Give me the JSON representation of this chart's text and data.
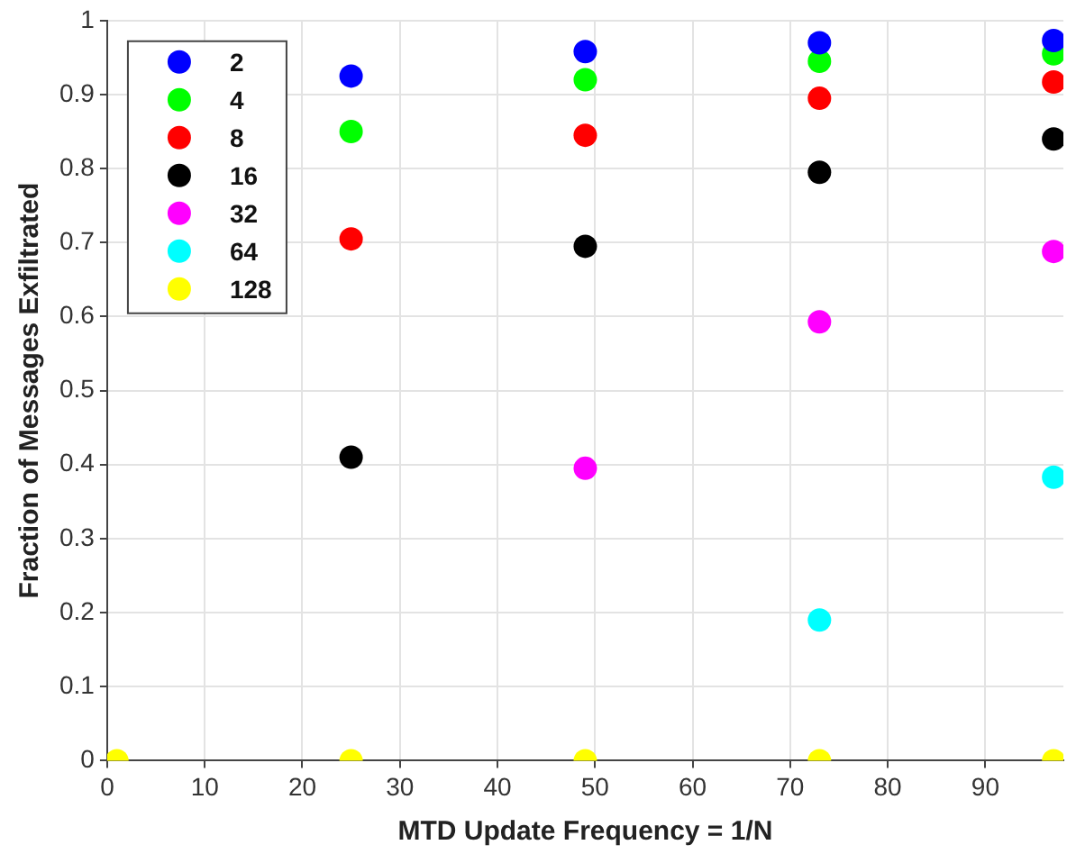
{
  "chart_data": {
    "type": "scatter",
    "xlabel": "MTD Update Frequency = 1/N",
    "ylabel": "Fraction of Messages Exfiltrated",
    "x": [
      1,
      25,
      49,
      73,
      97
    ],
    "series": [
      {
        "name": "2",
        "color": "#0000ff",
        "values": [
          null,
          0.925,
          0.958,
          0.97,
          0.973
        ]
      },
      {
        "name": "4",
        "color": "#00ff00",
        "values": [
          null,
          0.85,
          0.92,
          0.945,
          0.955
        ]
      },
      {
        "name": "8",
        "color": "#ff0000",
        "values": [
          null,
          0.705,
          0.845,
          0.895,
          0.917
        ]
      },
      {
        "name": "16",
        "color": "#000000",
        "values": [
          null,
          0.41,
          0.695,
          0.795,
          0.84
        ]
      },
      {
        "name": "32",
        "color": "#ff00ff",
        "values": [
          null,
          null,
          0.395,
          0.593,
          0.688
        ]
      },
      {
        "name": "64",
        "color": "#00ffff",
        "values": [
          null,
          null,
          null,
          0.19,
          0.383
        ]
      },
      {
        "name": "128",
        "color": "#ffff00",
        "values": [
          0,
          0,
          0,
          0,
          0
        ]
      }
    ],
    "xlim": [
      0,
      98
    ],
    "xticks": [
      0,
      10,
      20,
      30,
      40,
      50,
      60,
      70,
      80,
      90
    ],
    "ylim": [
      0,
      1
    ],
    "yticks": [
      0,
      0.1,
      0.2,
      0.3,
      0.4,
      0.5,
      0.6,
      0.7,
      0.8,
      0.9,
      1
    ],
    "grid": true,
    "legend": "top left",
    "marker": "circle"
  }
}
